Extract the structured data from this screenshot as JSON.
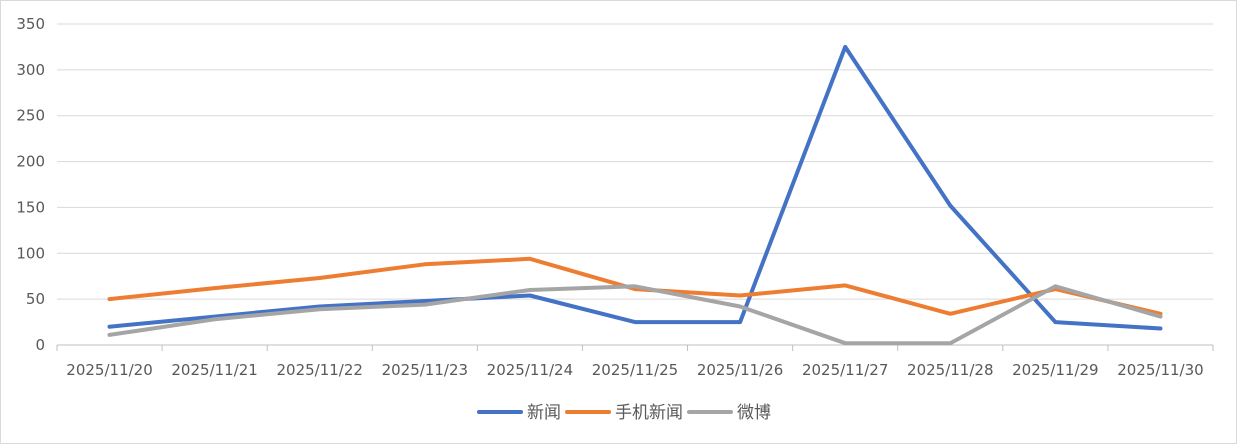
{
  "chart_data": {
    "type": "line",
    "title": "",
    "xlabel": "",
    "ylabel": "",
    "categories": [
      "2025/11/20",
      "2025/11/21",
      "2025/11/22",
      "2025/11/23",
      "2025/11/24",
      "2025/11/25",
      "2025/11/26",
      "2025/11/27",
      "2025/11/28",
      "2025/11/29",
      "2025/11/30"
    ],
    "ylim": [
      0,
      350
    ],
    "yticks": [
      "0",
      "50",
      "100",
      "150",
      "200",
      "250",
      "300",
      "350"
    ],
    "grid": true,
    "legend_position": "bottom",
    "series": [
      {
        "name": "新闻",
        "color": "#4472c4",
        "values": [
          20,
          31,
          42,
          48,
          54,
          25,
          25,
          325,
          152,
          25,
          18
        ]
      },
      {
        "name": "手机新闻",
        "color": "#ed7d31",
        "values": [
          50,
          62,
          73,
          88,
          94,
          61,
          54,
          65,
          34,
          61,
          34
        ]
      },
      {
        "name": "微博",
        "color": "#a5a5a5",
        "values": [
          11,
          28,
          39,
          44,
          60,
          64,
          42,
          2,
          2,
          64,
          31
        ]
      }
    ]
  }
}
